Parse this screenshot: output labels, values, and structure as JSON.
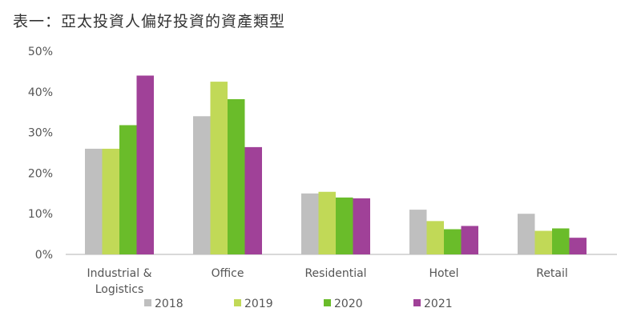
{
  "chart_data": {
    "type": "bar",
    "title": "表一：亞太投資人偏好投資的資產類型",
    "categories": [
      "Industrial & Logistics",
      "Office",
      "Residential",
      "Hotel",
      "Retail"
    ],
    "category_lines": [
      [
        "Industrial &",
        "Logistics"
      ],
      [
        "Office"
      ],
      [
        "Residential"
      ],
      [
        "Hotel"
      ],
      [
        "Retail"
      ]
    ],
    "series": [
      {
        "name": "2018",
        "color": "#bfbfbf",
        "values": [
          26,
          34,
          15,
          11,
          10
        ]
      },
      {
        "name": "2019",
        "color": "#c1d957",
        "values": [
          26,
          42.5,
          15.4,
          8.2,
          5.8
        ]
      },
      {
        "name": "2020",
        "color": "#6abc2a",
        "values": [
          31.8,
          38.2,
          14,
          6.2,
          6.4
        ]
      },
      {
        "name": "2021",
        "color": "#a04198",
        "values": [
          44,
          26.4,
          13.8,
          7,
          4.1
        ]
      }
    ],
    "yticks": [
      "0%",
      "10%",
      "20%",
      "30%",
      "40%",
      "50%"
    ],
    "ylim": [
      0,
      50
    ],
    "yunit": "%",
    "grid": false,
    "legend": "bottom"
  }
}
